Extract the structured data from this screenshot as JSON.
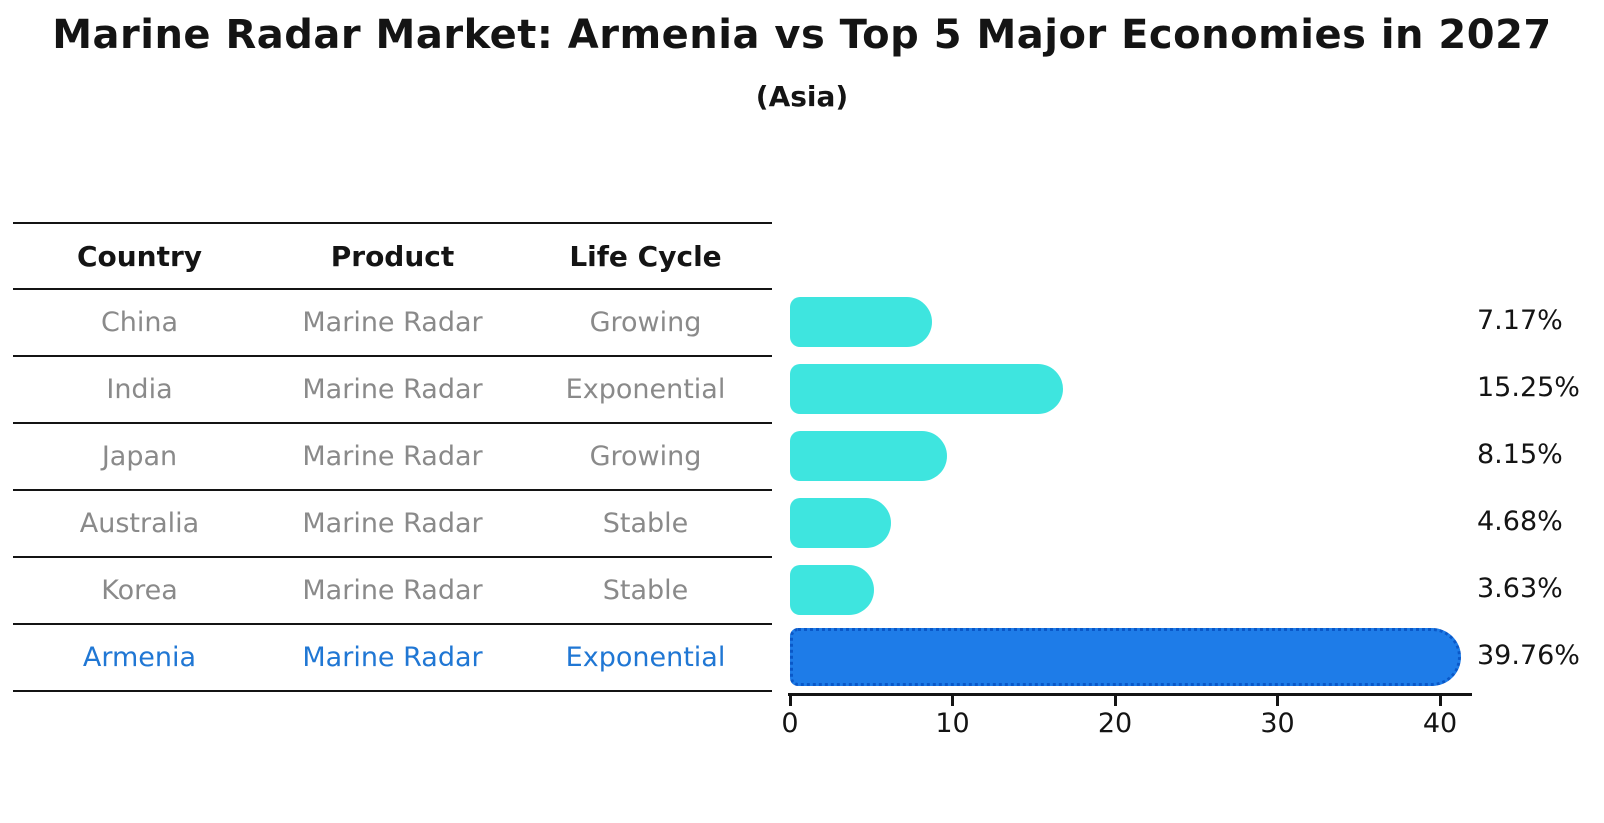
{
  "title": "Marine Radar Market: Armenia vs Top 5 Major Economies in 2027",
  "subtitle": "(Asia)",
  "table": {
    "headers": [
      "Country",
      "Product",
      "Life Cycle"
    ],
    "rows": [
      {
        "country": "China",
        "product": "Marine Radar",
        "life_cycle": "Growing",
        "highlighted": false
      },
      {
        "country": "India",
        "product": "Marine Radar",
        "life_cycle": "Exponential",
        "highlighted": false
      },
      {
        "country": "Japan",
        "product": "Marine Radar",
        "life_cycle": "Growing",
        "highlighted": false
      },
      {
        "country": "Australia",
        "product": "Marine Radar",
        "life_cycle": "Stable",
        "highlighted": false
      },
      {
        "country": "Korea",
        "product": "Marine Radar",
        "life_cycle": "Stable",
        "highlighted": false
      },
      {
        "country": "Armenia",
        "product": "Marine Radar",
        "life_cycle": "Exponential",
        "highlighted": true
      }
    ]
  },
  "chart_data": {
    "type": "bar",
    "orientation": "horizontal",
    "title": "Marine Radar Market: Armenia vs Top 5 Major Economies in 2027",
    "subtitle": "(Asia)",
    "categories": [
      "China",
      "India",
      "Japan",
      "Australia",
      "Korea",
      "Armenia"
    ],
    "values": [
      7.17,
      15.25,
      8.15,
      4.68,
      3.63,
      39.76
    ],
    "value_labels": [
      "7.17%",
      "15.25%",
      "8.15%",
      "4.68%",
      "3.63%",
      "39.76%"
    ],
    "xlabel": "",
    "ylabel": "",
    "xticks": [
      0,
      10,
      20,
      30,
      40
    ],
    "xlim": [
      0,
      42
    ],
    "grid": false,
    "legend": false,
    "highlight_category": "Armenia"
  },
  "colors": {
    "bar_default": "#3EE5DF",
    "bar_highlight": "#1E7CE8",
    "bar_highlight_edge": "#0A58C8",
    "text_default": "#141414",
    "text_muted": "#8A8A8A",
    "text_highlight": "#2077D4"
  }
}
